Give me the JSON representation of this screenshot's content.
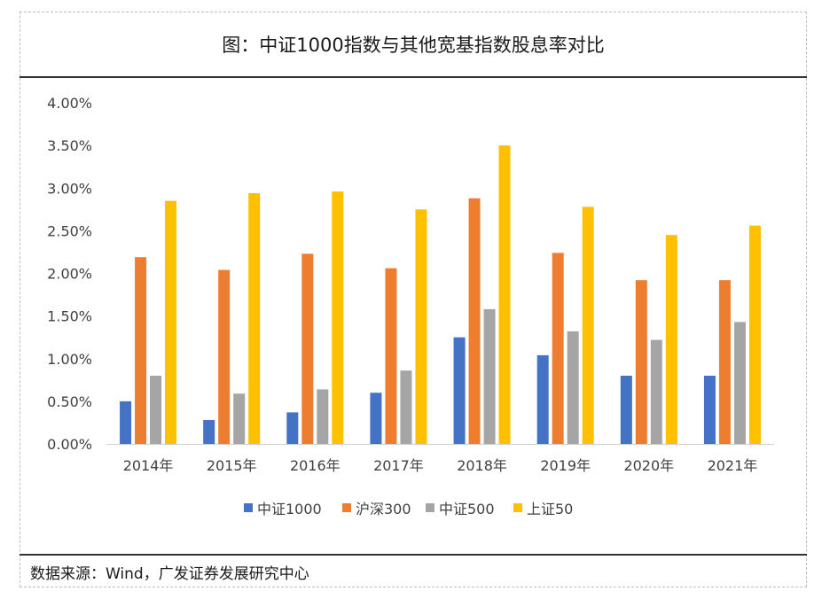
{
  "title": "图：中证1000指数与其他宽基指数股息率对比",
  "source": "数据来源：Wind，广发证券发展研究中心",
  "chart_data": {
    "type": "bar",
    "categories": [
      "2014年",
      "2015年",
      "2016年",
      "2017年",
      "2018年",
      "2019年",
      "2020年",
      "2021年"
    ],
    "series": [
      {
        "name": "中证1000",
        "color": "#4472C4",
        "values": [
          0.5,
          0.28,
          0.37,
          0.6,
          1.25,
          1.04,
          0.8,
          0.8
        ]
      },
      {
        "name": "沪深300",
        "color": "#ED7D31",
        "values": [
          2.19,
          2.04,
          2.23,
          2.06,
          2.88,
          2.24,
          1.92,
          1.92
        ]
      },
      {
        "name": "中证500",
        "color": "#A5A5A5",
        "values": [
          0.8,
          0.59,
          0.64,
          0.86,
          1.58,
          1.32,
          1.22,
          1.43
        ]
      },
      {
        "name": "上证50",
        "color": "#FFC000",
        "values": [
          2.85,
          2.94,
          2.96,
          2.75,
          3.5,
          2.78,
          2.45,
          2.56
        ]
      }
    ],
    "yticks": [
      "0.00%",
      "0.50%",
      "1.00%",
      "1.50%",
      "2.00%",
      "2.50%",
      "3.00%",
      "3.50%",
      "4.00%"
    ],
    "ylim": [
      0,
      4
    ],
    "grid": false,
    "legend": "bottom"
  }
}
